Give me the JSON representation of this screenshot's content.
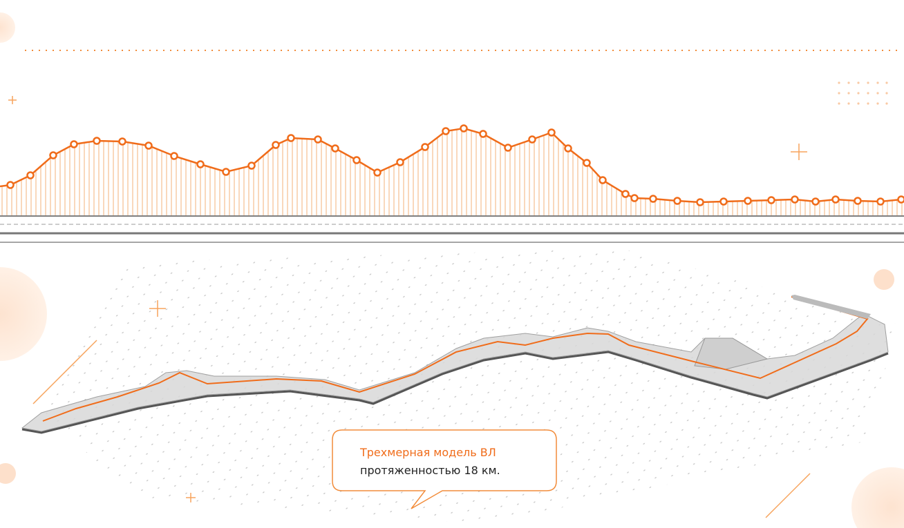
{
  "callout": {
    "title": "Трехмерная модель ВЛ",
    "subtitle": "протяженностью 18 км."
  }
}
